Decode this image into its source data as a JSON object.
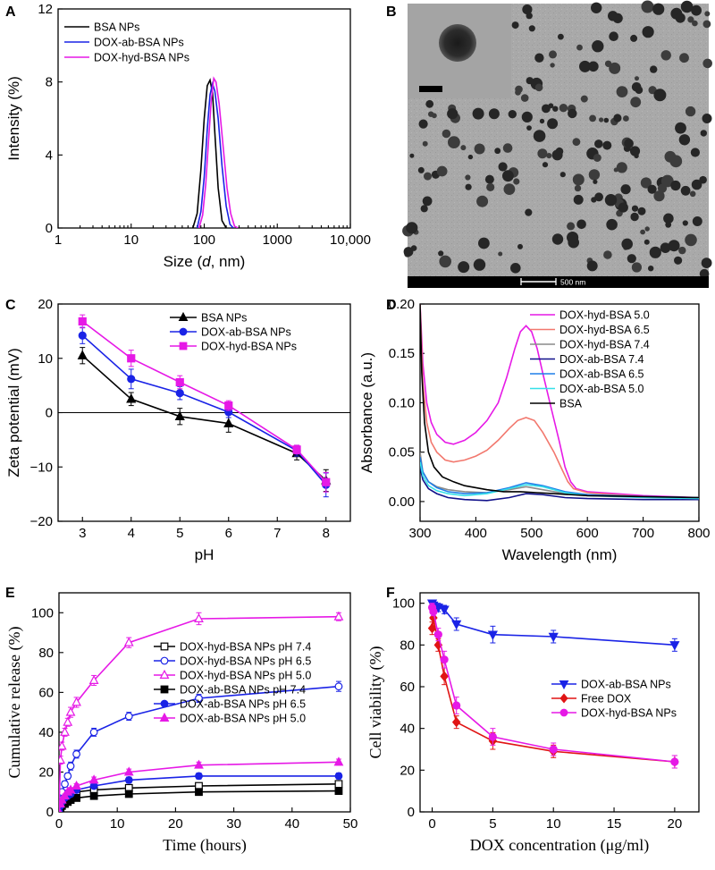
{
  "colors": {
    "black": "#000000",
    "blue": "#1a23e6",
    "magenta": "#e619e6",
    "red": "#e01414",
    "salmon": "#f2786e",
    "gray": "#8a8a8a",
    "navy": "#10108a",
    "azure": "#1e7ee8",
    "cyan": "#36e0e8"
  },
  "panels": {
    "a": {
      "letter": "A"
    },
    "b": {
      "letter": "B",
      "scalebar_label": "500 nm"
    },
    "c": {
      "letter": "C"
    },
    "d": {
      "letter": "D"
    },
    "e": {
      "letter": "E"
    },
    "f": {
      "letter": "F"
    }
  },
  "chart_data": [
    {
      "id": "A",
      "type": "line",
      "title": "",
      "xlabel_parts": [
        "Size (",
        "d",
        ", nm)"
      ],
      "ylabel": "Intensity (%)",
      "xscale": "log",
      "xlim": [
        1,
        10000
      ],
      "ylim": [
        0,
        12
      ],
      "xticks": [
        1,
        10,
        100,
        1000,
        10000
      ],
      "xticklabels": [
        "1",
        "10",
        "100",
        "1000",
        "10,000"
      ],
      "yticks": [
        0,
        4,
        8,
        12
      ],
      "yticklabels": [
        "0",
        "4",
        "8",
        "12"
      ],
      "legend_position": "top-left",
      "series": [
        {
          "name": "BSA NPs",
          "color": "#000000",
          "x": [
            70,
            80,
            90,
            100,
            110,
            120,
            130,
            140,
            155,
            175,
            200
          ],
          "y": [
            0,
            0.8,
            3.2,
            6.0,
            7.8,
            8.1,
            7.4,
            5.2,
            2.2,
            0.4,
            0
          ]
        },
        {
          "name": "DOX-ab-BSA NPs",
          "color": "#1a23e6",
          "x": [
            80,
            90,
            100,
            110,
            120,
            130,
            140,
            155,
            175,
            200,
            225,
            250
          ],
          "y": [
            0,
            0.9,
            2.8,
            5.4,
            7.3,
            7.9,
            7.5,
            6.0,
            3.4,
            1.2,
            0.2,
            0
          ]
        },
        {
          "name": "DOX-hyd-BSA NPs",
          "color": "#e619e6",
          "x": [
            85,
            95,
            105,
            115,
            125,
            135,
            145,
            160,
            180,
            205,
            230,
            260,
            290
          ],
          "y": [
            0,
            0.7,
            2.4,
            4.9,
            7.0,
            8.2,
            8.0,
            6.8,
            4.6,
            2.2,
            0.8,
            0.1,
            0
          ]
        }
      ]
    },
    {
      "id": "C",
      "type": "line",
      "title": "",
      "xlabel": "pH",
      "ylabel": "Zeta potential (mV)",
      "xlim": [
        2.5,
        8.5
      ],
      "ylim": [
        -20,
        20
      ],
      "xticks": [
        3,
        4,
        5,
        6,
        7,
        8
      ],
      "xticklabels": [
        "3",
        "4",
        "5",
        "6",
        "7",
        "8"
      ],
      "yticks": [
        -20,
        -10,
        0,
        10,
        20
      ],
      "yticklabels": [
        "−20",
        "−10",
        "0",
        "10",
        "20"
      ],
      "zero_line": true,
      "legend_position": "top-right",
      "series": [
        {
          "name": "BSA NPs",
          "color": "#000000",
          "marker": "triangle",
          "x": [
            3,
            4,
            5,
            6,
            7.4,
            8
          ],
          "y": [
            10.5,
            2.5,
            -0.7,
            -2.0,
            -7.5,
            -12.5
          ],
          "err": [
            1.5,
            1.2,
            1.5,
            1.6,
            1.2,
            2.0
          ]
        },
        {
          "name": "DOX-ab-BSA NPs",
          "color": "#1a23e6",
          "marker": "circle",
          "x": [
            3,
            4,
            5,
            6,
            7.4,
            8
          ],
          "y": [
            14.2,
            6.2,
            3.6,
            0.1,
            -7.0,
            -13.3
          ],
          "err": [
            1.5,
            1.8,
            1.2,
            1.0,
            1.0,
            2.2
          ]
        },
        {
          "name": "DOX-hyd-BSA NPs",
          "color": "#e619e6",
          "marker": "square",
          "x": [
            3,
            4,
            5,
            6,
            7.4,
            8
          ],
          "y": [
            16.8,
            10.0,
            5.6,
            1.3,
            -6.8,
            -12.8
          ],
          "err": [
            1.2,
            1.5,
            1.2,
            0.9,
            0.8,
            1.8
          ]
        }
      ]
    },
    {
      "id": "D",
      "type": "line",
      "title": "",
      "xlabel": "Wavelength (nm)",
      "ylabel": "Absorbance (a.u.)",
      "xlim": [
        300,
        800
      ],
      "ylim": [
        -0.02,
        0.2
      ],
      "xticks": [
        300,
        400,
        500,
        600,
        700,
        800
      ],
      "xticklabels": [
        "300",
        "400",
        "500",
        "600",
        "700",
        "800"
      ],
      "yticks": [
        0,
        0.05,
        0.1,
        0.15,
        0.2
      ],
      "yticklabels": [
        "0.00",
        "0.05",
        "0.10",
        "0.15",
        "0.20"
      ],
      "legend_position": "top-right",
      "series": [
        {
          "name": "DOX-hyd-BSA 5.0",
          "color": "#e619e6",
          "x": [
            300,
            305,
            312,
            320,
            330,
            345,
            360,
            380,
            400,
            420,
            440,
            455,
            470,
            480,
            490,
            500,
            510,
            520,
            535,
            550,
            560,
            570,
            580,
            600,
            650,
            700,
            750,
            800
          ],
          "y": [
            0.2,
            0.14,
            0.1,
            0.08,
            0.068,
            0.06,
            0.058,
            0.062,
            0.07,
            0.082,
            0.1,
            0.125,
            0.155,
            0.172,
            0.178,
            0.172,
            0.155,
            0.13,
            0.095,
            0.06,
            0.035,
            0.02,
            0.013,
            0.01,
            0.008,
            0.006,
            0.005,
            0.004
          ]
        },
        {
          "name": "DOX-hyd-BSA 6.5",
          "color": "#f2786e",
          "x": [
            300,
            305,
            312,
            320,
            330,
            345,
            360,
            380,
            400,
            420,
            440,
            460,
            475,
            490,
            505,
            520,
            540,
            555,
            565,
            575,
            600,
            650,
            700,
            750,
            800
          ],
          "y": [
            0.2,
            0.12,
            0.08,
            0.06,
            0.05,
            0.042,
            0.04,
            0.042,
            0.046,
            0.052,
            0.062,
            0.074,
            0.082,
            0.085,
            0.082,
            0.07,
            0.05,
            0.032,
            0.02,
            0.013,
            0.009,
            0.007,
            0.005,
            0.004,
            0.004
          ]
        },
        {
          "name": "DOX-hyd-BSA 7.4",
          "color": "#8a8a8a",
          "x": [
            300,
            305,
            315,
            330,
            350,
            380,
            420,
            460,
            490,
            520,
            560,
            600,
            700,
            800
          ],
          "y": [
            0.05,
            0.03,
            0.02,
            0.015,
            0.012,
            0.01,
            0.009,
            0.012,
            0.015,
            0.012,
            0.008,
            0.006,
            0.005,
            0.004
          ]
        },
        {
          "name": "DOX-ab-BSA 7.4",
          "color": "#10108a",
          "x": [
            300,
            305,
            315,
            330,
            350,
            380,
            420,
            460,
            490,
            520,
            560,
            600,
            700,
            800
          ],
          "y": [
            0.035,
            0.022,
            0.013,
            0.008,
            0.004,
            0.002,
            0.001,
            0.004,
            0.008,
            0.007,
            0.004,
            0.003,
            0.002,
            0.002
          ]
        },
        {
          "name": "DOX-ab-BSA 6.5",
          "color": "#1e7ee8",
          "x": [
            300,
            305,
            315,
            330,
            350,
            380,
            420,
            460,
            490,
            520,
            560,
            600,
            700,
            800
          ],
          "y": [
            0.045,
            0.03,
            0.02,
            0.014,
            0.01,
            0.008,
            0.009,
            0.014,
            0.019,
            0.016,
            0.01,
            0.007,
            0.005,
            0.004
          ]
        },
        {
          "name": "DOX-ab-BSA 5.0",
          "color": "#36e0e8",
          "x": [
            300,
            305,
            315,
            330,
            350,
            380,
            420,
            460,
            490,
            520,
            560,
            600,
            700,
            800
          ],
          "y": [
            0.04,
            0.026,
            0.016,
            0.011,
            0.008,
            0.006,
            0.008,
            0.013,
            0.017,
            0.015,
            0.009,
            0.006,
            0.004,
            0.003
          ]
        },
        {
          "name": "BSA",
          "color": "#000000",
          "x": [
            300,
            303,
            308,
            315,
            325,
            340,
            360,
            380,
            400,
            420,
            450,
            480,
            510,
            540,
            600,
            700,
            800
          ],
          "y": [
            0.2,
            0.13,
            0.08,
            0.05,
            0.035,
            0.025,
            0.02,
            0.016,
            0.014,
            0.012,
            0.01,
            0.01,
            0.009,
            0.008,
            0.006,
            0.005,
            0.004
          ]
        }
      ]
    },
    {
      "id": "E",
      "type": "line",
      "title": "",
      "xlabel": "Time (hours)",
      "ylabel": "Cumulative release (%)",
      "xlim": [
        0,
        50
      ],
      "ylim": [
        0,
        110
      ],
      "xticks": [
        0,
        10,
        20,
        30,
        40,
        50
      ],
      "xticklabels": [
        "0",
        "10",
        "20",
        "30",
        "40",
        "50"
      ],
      "yticks": [
        0,
        20,
        40,
        60,
        80,
        100
      ],
      "yticklabels": [
        "0",
        "20",
        "40",
        "60",
        "80",
        "100"
      ],
      "legend_position": "center-right",
      "series": [
        {
          "name": "DOX-hyd-BSA NPs pH 7.4",
          "color": "#000000",
          "marker": "square-open",
          "x": [
            0,
            0.25,
            0.5,
            1,
            1.5,
            2,
            3,
            6,
            12,
            24,
            48
          ],
          "y": [
            0,
            3,
            5,
            7,
            8,
            9,
            10,
            11,
            12,
            13,
            14
          ],
          "err": [
            0,
            0.5,
            0.5,
            0.8,
            0.8,
            1,
            1,
            1,
            1,
            1,
            1
          ]
        },
        {
          "name": "DOX-hyd-BSA NPs pH 6.5",
          "color": "#1a23e6",
          "marker": "circle-open",
          "x": [
            0,
            0.25,
            0.5,
            1,
            1.5,
            2,
            3,
            6,
            12,
            24,
            48
          ],
          "y": [
            0,
            6,
            10,
            14,
            18,
            23,
            29,
            40,
            48,
            57,
            63
          ],
          "err": [
            0,
            1,
            1,
            1.5,
            1.5,
            2,
            2,
            2,
            2,
            2,
            2.5
          ]
        },
        {
          "name": "DOX-hyd-BSA NPs pH 5.0",
          "color": "#e619e6",
          "marker": "triangle-open",
          "x": [
            0,
            0.25,
            0.5,
            1,
            1.5,
            2,
            3,
            6,
            12,
            24,
            48
          ],
          "y": [
            0,
            26,
            33,
            40,
            45,
            50,
            55,
            66,
            85,
            97,
            98
          ],
          "err": [
            0,
            2,
            2,
            2,
            2,
            2.5,
            2.5,
            2.5,
            2.5,
            3,
            2
          ]
        },
        {
          "name": "DOX-ab-BSA NPs pH 7.4",
          "color": "#000000",
          "marker": "square",
          "x": [
            0,
            0.25,
            0.5,
            1,
            1.5,
            2,
            3,
            6,
            12,
            24,
            48
          ],
          "y": [
            0,
            2,
            3,
            4,
            5,
            6,
            7,
            8,
            9,
            10,
            10.5
          ],
          "err": [
            0,
            0.5,
            0.5,
            0.5,
            0.8,
            0.8,
            1,
            1,
            1,
            1,
            1
          ]
        },
        {
          "name": "DOX-ab-BSA NPs pH 6.5",
          "color": "#1a23e6",
          "marker": "circle",
          "x": [
            0,
            0.25,
            0.5,
            1,
            1.5,
            2,
            3,
            6,
            12,
            24,
            48
          ],
          "y": [
            0,
            3,
            5,
            7,
            8,
            9,
            11,
            13,
            16,
            18,
            18
          ],
          "err": [
            0,
            0.5,
            0.8,
            1,
            1,
            1,
            1.2,
            1.2,
            1.5,
            1.5,
            1.5
          ]
        },
        {
          "name": "DOX-ab-BSA NPs pH 5.0",
          "color": "#e619e6",
          "marker": "triangle",
          "x": [
            0,
            0.25,
            0.5,
            1,
            1.5,
            2,
            3,
            6,
            12,
            24,
            48
          ],
          "y": [
            0,
            4,
            6,
            8,
            10,
            11,
            13,
            16,
            20,
            23.5,
            25
          ],
          "err": [
            0,
            0.8,
            1,
            1,
            1,
            1.2,
            1.2,
            1.5,
            1.5,
            1.5,
            1.5
          ]
        }
      ]
    },
    {
      "id": "F",
      "type": "line",
      "title": "",
      "xlabel": "DOX concentration (μg/ml)",
      "ylabel": "Cell viability (%)",
      "xlim": [
        -1,
        22
      ],
      "ylim": [
        0,
        105
      ],
      "xticks": [
        0,
        5,
        10,
        15,
        20
      ],
      "xticklabels": [
        "0",
        "5",
        "10",
        "15",
        "20"
      ],
      "yticks": [
        0,
        20,
        40,
        60,
        80,
        100
      ],
      "yticklabels": [
        "0",
        "20",
        "40",
        "60",
        "80",
        "100"
      ],
      "legend_position": "center-right",
      "series": [
        {
          "name": "DOX-ab-BSA NPs",
          "color": "#1a23e6",
          "marker": "triangle-down",
          "x": [
            0,
            0.1,
            0.5,
            1,
            2,
            5,
            10,
            20
          ],
          "y": [
            100,
            99,
            98,
            97,
            90,
            85,
            84,
            80
          ],
          "err": [
            1,
            1,
            2,
            2,
            3,
            4,
            3,
            3
          ]
        },
        {
          "name": "Free DOX",
          "color": "#e01414",
          "marker": "diamond",
          "x": [
            0,
            0.1,
            0.5,
            1,
            2,
            5,
            10,
            20
          ],
          "y": [
            88,
            93,
            80,
            65,
            43,
            34,
            29,
            24
          ],
          "err": [
            3,
            3,
            3,
            4,
            3,
            4,
            3,
            3
          ]
        },
        {
          "name": "DOX-hyd-BSA NPs",
          "color": "#e619e6",
          "marker": "circle",
          "x": [
            0,
            0.1,
            0.5,
            1,
            2,
            5,
            10,
            20
          ],
          "y": [
            98,
            96,
            85,
            73,
            51,
            36,
            30,
            24
          ],
          "err": [
            2,
            2,
            3,
            4,
            4,
            4,
            3,
            3
          ]
        }
      ]
    }
  ]
}
